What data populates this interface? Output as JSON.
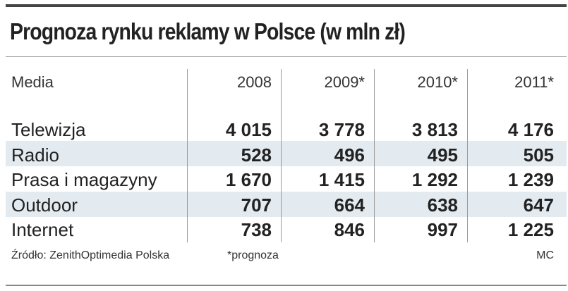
{
  "header": {
    "title": "Prognoza rynku reklamy w Polsce (w mln zł)"
  },
  "table": {
    "columns": [
      "Media",
      "2008",
      "2009*",
      "2010*",
      "2011*"
    ],
    "rows": [
      [
        "Telewizja",
        "4 015",
        "3 778",
        "3 813",
        "4 176"
      ],
      [
        "Radio",
        "528",
        "496",
        "495",
        "505"
      ],
      [
        "Prasa i magazyny",
        "1 670",
        "1 415",
        "1 292",
        "1 239"
      ],
      [
        "Outdoor",
        "707",
        "664",
        "638",
        "647"
      ],
      [
        "Internet",
        "738",
        "846",
        "997",
        "1 225"
      ]
    ]
  },
  "footer": {
    "source": "Źródło: ZenithOptimedia Polska",
    "note": "*prognoza",
    "author": "MC"
  }
}
